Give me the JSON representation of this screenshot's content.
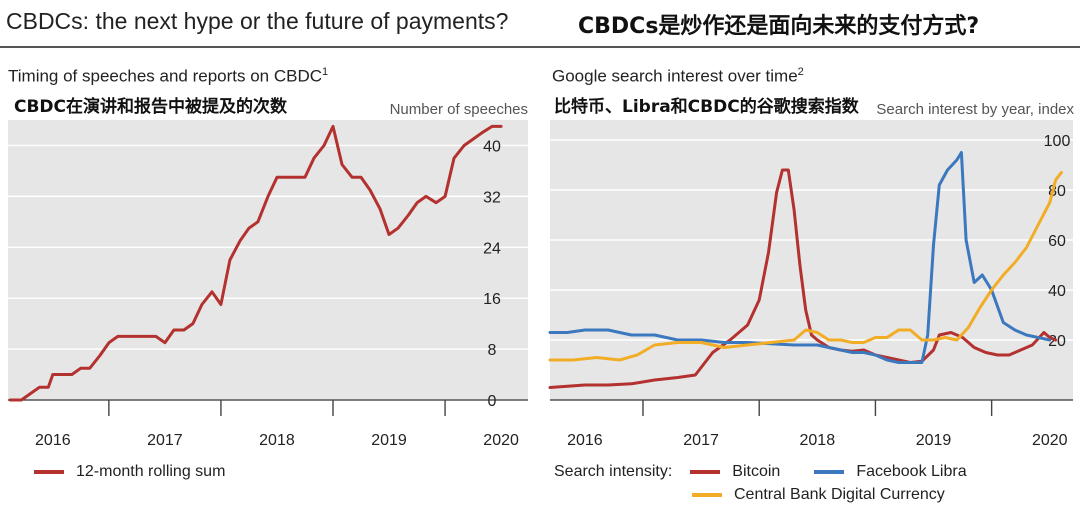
{
  "header": {
    "title_en": "CBDCs: the next hype or the future of payments?",
    "title_zh": "CBDCs是炒作还是面向未来的支付方式?"
  },
  "colors": {
    "panel_bg": "#e6e6e6",
    "grid": "#ffffff",
    "red": "#b3312f",
    "blue": "#3c78be",
    "orange": "#f2ad27"
  },
  "chart_data": [
    {
      "type": "line",
      "title": "Timing of speeches and reports on CBDC",
      "title_sup": "1",
      "subtitle": "CBDC在演讲和报告中被提及的次数",
      "ylabel": "Number of speeches",
      "y_axis_side": "right",
      "ylim": [
        0,
        44
      ],
      "yticks": [
        0,
        8,
        16,
        24,
        32,
        40
      ],
      "xlim": [
        2015.6,
        2020.24
      ],
      "xticks": [
        2016,
        2017,
        2018,
        2019,
        2020
      ],
      "grid": true,
      "legend_position": "bottom-left",
      "series": [
        {
          "name": "12-month rolling sum",
          "color": "#b3312f",
          "points": [
            [
              2015.62,
              0
            ],
            [
              2015.72,
              0
            ],
            [
              2015.8,
              1
            ],
            [
              2015.88,
              2
            ],
            [
              2015.96,
              2
            ],
            [
              2016.0,
              4
            ],
            [
              2016.08,
              4
            ],
            [
              2016.17,
              4
            ],
            [
              2016.25,
              5
            ],
            [
              2016.33,
              5
            ],
            [
              2016.42,
              7
            ],
            [
              2016.5,
              9
            ],
            [
              2016.58,
              10
            ],
            [
              2016.67,
              10
            ],
            [
              2016.75,
              10
            ],
            [
              2016.83,
              10
            ],
            [
              2016.92,
              10
            ],
            [
              2017.0,
              9
            ],
            [
              2017.08,
              11
            ],
            [
              2017.17,
              11
            ],
            [
              2017.25,
              12
            ],
            [
              2017.33,
              15
            ],
            [
              2017.42,
              17
            ],
            [
              2017.5,
              15
            ],
            [
              2017.58,
              22
            ],
            [
              2017.67,
              25
            ],
            [
              2017.75,
              27
            ],
            [
              2017.83,
              28
            ],
            [
              2017.92,
              32
            ],
            [
              2018.0,
              35
            ],
            [
              2018.08,
              35
            ],
            [
              2018.17,
              35
            ],
            [
              2018.25,
              35
            ],
            [
              2018.33,
              38
            ],
            [
              2018.42,
              40
            ],
            [
              2018.5,
              43
            ],
            [
              2018.58,
              37
            ],
            [
              2018.67,
              35
            ],
            [
              2018.75,
              35
            ],
            [
              2018.83,
              33
            ],
            [
              2018.92,
              30
            ],
            [
              2019.0,
              26
            ],
            [
              2019.08,
              27
            ],
            [
              2019.17,
              29
            ],
            [
              2019.25,
              31
            ],
            [
              2019.33,
              32
            ],
            [
              2019.42,
              31
            ],
            [
              2019.5,
              32
            ],
            [
              2019.58,
              38
            ],
            [
              2019.67,
              40
            ],
            [
              2019.75,
              41
            ],
            [
              2019.83,
              42
            ],
            [
              2019.92,
              43
            ],
            [
              2020.0,
              43
            ]
          ]
        }
      ]
    },
    {
      "type": "line",
      "title": "Google search interest over time",
      "title_sup": "2",
      "subtitle": "比特币、Libra和CBDC的谷歌搜索指数",
      "ylabel": "Search interest by year, index",
      "y_axis_side": "right",
      "ylim": [
        -4,
        108
      ],
      "yticks": [
        20,
        40,
        60,
        80,
        100
      ],
      "xlim": [
        2015.7,
        2020.2
      ],
      "xticks": [
        2016,
        2017,
        2018,
        2019,
        2020
      ],
      "grid": true,
      "legend_title": "Search intensity:",
      "legend_position": "bottom",
      "series": [
        {
          "name": "Bitcoin",
          "color": "#b3312f",
          "points": [
            [
              2015.7,
              1
            ],
            [
              2015.85,
              1.5
            ],
            [
              2016.0,
              2
            ],
            [
              2016.2,
              2
            ],
            [
              2016.4,
              2.5
            ],
            [
              2016.6,
              4
            ],
            [
              2016.8,
              5
            ],
            [
              2016.95,
              6
            ],
            [
              2017.1,
              15
            ],
            [
              2017.25,
              20
            ],
            [
              2017.4,
              26
            ],
            [
              2017.5,
              36
            ],
            [
              2017.58,
              55
            ],
            [
              2017.65,
              79
            ],
            [
              2017.7,
              88
            ],
            [
              2017.75,
              88
            ],
            [
              2017.8,
              72
            ],
            [
              2017.85,
              50
            ],
            [
              2017.9,
              32
            ],
            [
              2017.95,
              22
            ],
            [
              2018.0,
              20
            ],
            [
              2018.1,
              17
            ],
            [
              2018.2,
              16
            ],
            [
              2018.3,
              15.5
            ],
            [
              2018.4,
              16
            ],
            [
              2018.5,
              14
            ],
            [
              2018.6,
              13
            ],
            [
              2018.7,
              12
            ],
            [
              2018.8,
              11
            ],
            [
              2018.9,
              11.5
            ],
            [
              2019.0,
              16
            ],
            [
              2019.05,
              22
            ],
            [
              2019.15,
              23
            ],
            [
              2019.25,
              21
            ],
            [
              2019.35,
              17
            ],
            [
              2019.45,
              15
            ],
            [
              2019.55,
              14
            ],
            [
              2019.65,
              14
            ],
            [
              2019.75,
              16
            ],
            [
              2019.85,
              18
            ],
            [
              2019.95,
              23
            ],
            [
              2020.0,
              21
            ],
            [
              2020.05,
              20
            ]
          ]
        },
        {
          "name": "Facebook Libra",
          "color": "#3c78be",
          "points": [
            [
              2015.7,
              23
            ],
            [
              2015.85,
              23
            ],
            [
              2016.0,
              24
            ],
            [
              2016.2,
              24
            ],
            [
              2016.4,
              22
            ],
            [
              2016.6,
              22
            ],
            [
              2016.8,
              20
            ],
            [
              2017.0,
              20
            ],
            [
              2017.2,
              19
            ],
            [
              2017.4,
              19
            ],
            [
              2017.6,
              18.5
            ],
            [
              2017.8,
              18
            ],
            [
              2018.0,
              18
            ],
            [
              2018.1,
              17
            ],
            [
              2018.2,
              16
            ],
            [
              2018.3,
              15
            ],
            [
              2018.4,
              15
            ],
            [
              2018.5,
              14
            ],
            [
              2018.6,
              12
            ],
            [
              2018.7,
              11
            ],
            [
              2018.8,
              11
            ],
            [
              2018.9,
              11
            ],
            [
              2018.95,
              22
            ],
            [
              2019.0,
              58
            ],
            [
              2019.05,
              82
            ],
            [
              2019.12,
              88
            ],
            [
              2019.2,
              92
            ],
            [
              2019.24,
              95
            ],
            [
              2019.28,
              60
            ],
            [
              2019.35,
              43
            ],
            [
              2019.42,
              46
            ],
            [
              2019.5,
              40
            ],
            [
              2019.6,
              27
            ],
            [
              2019.7,
              24
            ],
            [
              2019.8,
              22
            ],
            [
              2019.9,
              21
            ],
            [
              2020.0,
              20
            ]
          ]
        },
        {
          "name": "Central Bank Digital Currency",
          "color": "#f2ad27",
          "points": [
            [
              2015.7,
              12
            ],
            [
              2015.9,
              12
            ],
            [
              2016.1,
              13
            ],
            [
              2016.3,
              12
            ],
            [
              2016.45,
              14
            ],
            [
              2016.6,
              18
            ],
            [
              2016.8,
              19
            ],
            [
              2017.0,
              19
            ],
            [
              2017.2,
              17
            ],
            [
              2017.4,
              18
            ],
            [
              2017.6,
              19
            ],
            [
              2017.8,
              20
            ],
            [
              2017.9,
              24
            ],
            [
              2018.0,
              23
            ],
            [
              2018.1,
              20
            ],
            [
              2018.2,
              20
            ],
            [
              2018.3,
              19
            ],
            [
              2018.4,
              19
            ],
            [
              2018.5,
              21
            ],
            [
              2018.6,
              21
            ],
            [
              2018.7,
              24
            ],
            [
              2018.8,
              24
            ],
            [
              2018.9,
              20
            ],
            [
              2019.0,
              20
            ],
            [
              2019.1,
              21
            ],
            [
              2019.2,
              20
            ],
            [
              2019.3,
              25
            ],
            [
              2019.4,
              33
            ],
            [
              2019.5,
              40
            ],
            [
              2019.6,
              46
            ],
            [
              2019.7,
              51
            ],
            [
              2019.8,
              57
            ],
            [
              2019.9,
              66
            ],
            [
              2020.0,
              75
            ],
            [
              2020.05,
              84
            ],
            [
              2020.1,
              87
            ]
          ]
        }
      ]
    }
  ]
}
